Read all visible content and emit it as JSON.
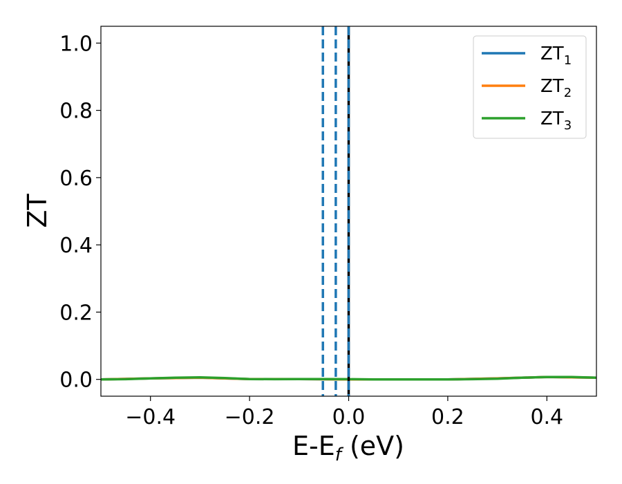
{
  "chart_data": {
    "type": "line",
    "xlabel": {
      "main": "E-E",
      "sub": "f",
      "suffix": " (eV)"
    },
    "ylabel": "ZT",
    "xlim": [
      -0.5,
      0.5
    ],
    "ylim": [
      -0.05,
      1.05
    ],
    "x_ticks": [
      -0.4,
      -0.2,
      0.0,
      0.2,
      0.4
    ],
    "x_tick_labels": [
      "−0.4",
      "−0.2",
      "0.0",
      "0.2",
      "0.4"
    ],
    "y_ticks": [
      0.0,
      0.2,
      0.4,
      0.6,
      0.8,
      1.0
    ],
    "y_tick_labels": [
      "0.0",
      "0.2",
      "0.4",
      "0.6",
      "0.8",
      "1.0"
    ],
    "grid": false,
    "legend_position": "top-right",
    "series": [
      {
        "name": "ZT",
        "sub": "1",
        "color": "#1f77b4",
        "x": [
          -0.5,
          -0.4,
          -0.3,
          -0.2,
          -0.1,
          0.0,
          0.1,
          0.2,
          0.3,
          0.4,
          0.5
        ],
        "y": [
          0.0,
          0.003,
          0.005,
          0.001,
          0.001,
          0.0,
          0.0,
          0.0,
          0.003,
          0.007,
          0.005
        ]
      },
      {
        "name": "ZT",
        "sub": "2",
        "color": "#ff7f0e",
        "x": [
          -0.5,
          -0.4,
          -0.3,
          -0.2,
          -0.1,
          0.0,
          0.1,
          0.2,
          0.3,
          0.4,
          0.5
        ],
        "y": [
          0.0,
          0.003,
          0.005,
          0.001,
          0.001,
          0.0,
          0.0,
          0.0,
          0.003,
          0.007,
          0.005
        ]
      },
      {
        "name": "ZT",
        "sub": "3",
        "color": "#2ca02c",
        "x": [
          -0.5,
          -0.45,
          -0.4,
          -0.35,
          -0.3,
          -0.25,
          -0.2,
          -0.15,
          -0.1,
          -0.05,
          0.0,
          0.05,
          0.1,
          0.15,
          0.2,
          0.25,
          0.3,
          0.35,
          0.4,
          0.45,
          0.5
        ],
        "y": [
          0.0,
          0.0005,
          0.003,
          0.005,
          0.006,
          0.004,
          0.001,
          0.0005,
          0.001,
          0.001,
          0.0005,
          0.0,
          0.0,
          0.0,
          0.0,
          0.0005,
          0.002,
          0.005,
          0.007,
          0.007,
          0.005
        ]
      }
    ],
    "vertical_lines": [
      {
        "x": -0.052,
        "style": "dashed",
        "color": "#1f77b4"
      },
      {
        "x": -0.026,
        "style": "dashed",
        "color": "#1f77b4"
      },
      {
        "x": 0.0,
        "style": "solid",
        "color": "#000000"
      },
      {
        "x": 0.0,
        "style": "dashed",
        "color": "#1f77b4"
      }
    ]
  }
}
